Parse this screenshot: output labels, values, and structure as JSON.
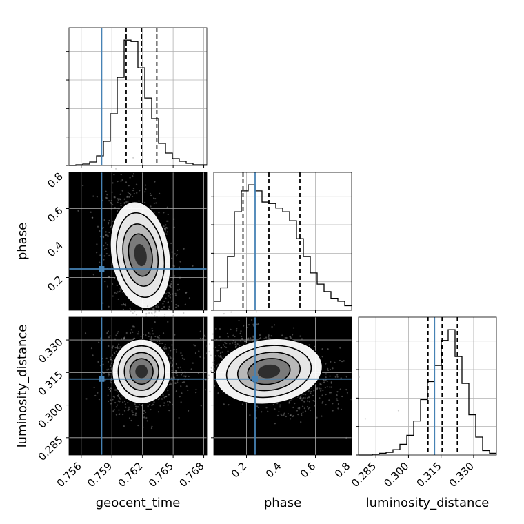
{
  "chart_data": {
    "type": "corner",
    "parameters": [
      "geocent_time",
      "phase",
      "luminosity_distance"
    ],
    "truths": {
      "geocent_time": 0.758,
      "phase": 0.25,
      "luminosity_distance": 0.312
    },
    "truth_color": "#4682b4",
    "quantiles": {
      "geocent_time": [
        0.7604,
        0.7619,
        0.7634
      ],
      "phase": [
        0.18,
        0.33,
        0.51
      ],
      "luminosity_distance": [
        0.309,
        0.3155,
        0.3225
      ]
    },
    "ranges": {
      "geocent_time": [
        0.7548,
        0.7683
      ],
      "phase": [
        0.01,
        0.81
      ],
      "luminosity_distance": [
        0.277,
        0.3405
      ]
    },
    "ticks": {
      "geocent_time": [
        "0.756",
        "0.759",
        "0.762",
        "0.765",
        "0.768"
      ],
      "phase": [
        "0.2",
        "0.4",
        "0.6",
        "0.8"
      ],
      "luminosity_distance": [
        "0.285",
        "0.300",
        "0.315",
        "0.330"
      ]
    },
    "histograms": {
      "geocent_time": {
        "bin_range": [
          0.7548,
          0.7683
        ],
        "counts": [
          0,
          1,
          2,
          5,
          14,
          35,
          75,
          128,
          182,
          180,
          142,
          98,
          68,
          32,
          18,
          10,
          6,
          3,
          1,
          1
        ]
      },
      "phase": {
        "bin_range": [
          0.01,
          0.81
        ],
        "counts": [
          12,
          30,
          72,
          132,
          160,
          168,
          160,
          145,
          143,
          137,
          132,
          120,
          96,
          72,
          50,
          35,
          25,
          16,
          12,
          6
        ]
      },
      "luminosity_distance": {
        "bin_range": [
          0.277,
          0.3405
        ],
        "counts": [
          0,
          0,
          1,
          2,
          3,
          6,
          12,
          22,
          38,
          62,
          82,
          100,
          128,
          140,
          110,
          80,
          45,
          20,
          5,
          2
        ]
      }
    },
    "grid": true
  }
}
